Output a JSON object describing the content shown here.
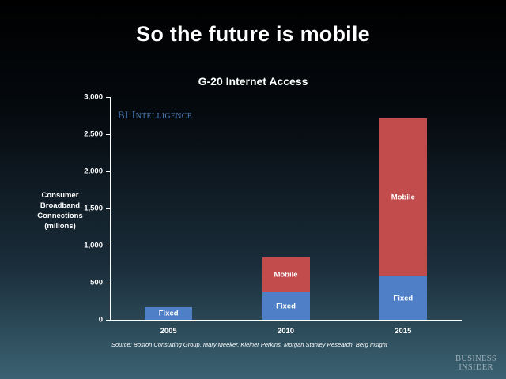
{
  "slide": {
    "title": "So the future is mobile",
    "watermark": {
      "bi": "BI",
      "intelligence": "Intelligence"
    },
    "source": "Source: Boston Consulting Group, Mary Meeker, Kleiner Perkins, Morgan Stanley Research, Berg Insight",
    "logo_line1": "BUSINESS",
    "logo_line2": "INSIDER"
  },
  "chart_data": {
    "type": "bar",
    "stacked": true,
    "title": "G-20 Internet Access",
    "xlabel": "",
    "ylabel": "Consumer\nBroadband\nConnections\n(milions)",
    "ylim": [
      0,
      3000
    ],
    "yticks": [
      "0",
      "500",
      "1,000",
      "1,500",
      "2,000",
      "2,500",
      "3,000"
    ],
    "ytick_values": [
      0,
      500,
      1000,
      1500,
      2000,
      2500,
      3000
    ],
    "grid": false,
    "legend": "none (segments labeled inside bars)",
    "categories": [
      "2005",
      "2010",
      "2015"
    ],
    "series": [
      {
        "name": "Fixed",
        "color": "#4f7fc7",
        "values": [
          170,
          370,
          580
        ],
        "segment_labels": [
          "Fixed",
          "Fixed",
          "Fixed"
        ]
      },
      {
        "name": "Mobile",
        "color": "#c24b4b",
        "values": [
          0,
          470,
          2130
        ],
        "segment_labels": [
          "",
          "Mobile",
          "Mobile"
        ]
      }
    ]
  }
}
